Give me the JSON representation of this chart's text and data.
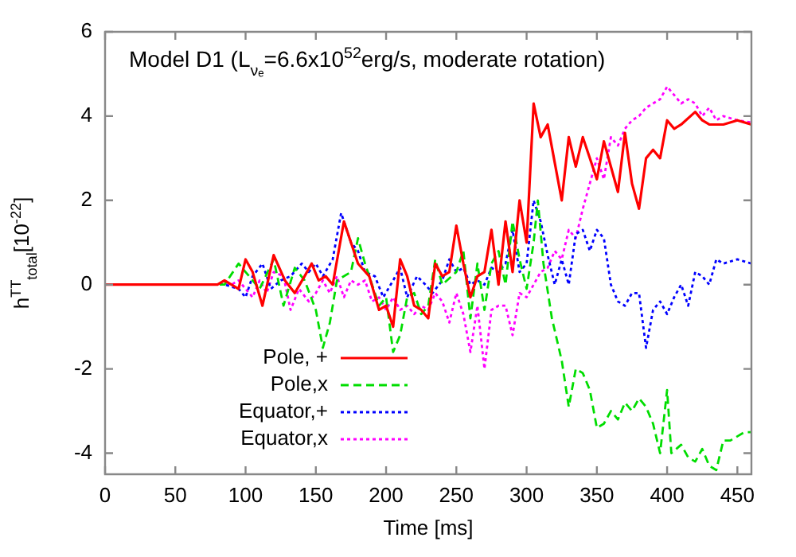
{
  "chart_data": {
    "type": "line",
    "title": "Model D1 (L$_{νₑ}$=6.6x10$^{52}$erg/s, moderate rotation)",
    "xlabel": "Time [ms]",
    "ylabel": "h$^{TT}$$_{total}$[10$^{-22}$]",
    "xlim": [
      0,
      460
    ],
    "ylim": [
      -4.5,
      6
    ],
    "xticks": [
      0,
      50,
      100,
      150,
      200,
      250,
      300,
      350,
      400,
      450
    ],
    "yticks": [
      -4,
      -2,
      0,
      2,
      4,
      6
    ],
    "grid": false,
    "legend": "bottom left",
    "marker": "none",
    "series": [
      {
        "name": "Pole, +",
        "color": "#ff0000",
        "line_style": "solid",
        "x": [
          0,
          80,
          85,
          95,
          100,
          105,
          112,
          120,
          128,
          135,
          142,
          147,
          152,
          157,
          162,
          170,
          175,
          180,
          188,
          195,
          200,
          205,
          210,
          215,
          220,
          225,
          230,
          235,
          240,
          245,
          250,
          255,
          260,
          265,
          270,
          275,
          280,
          285,
          290,
          295,
          300,
          305,
          310,
          315,
          320,
          325,
          330,
          335,
          340,
          345,
          350,
          355,
          360,
          365,
          370,
          375,
          380,
          385,
          390,
          395,
          400,
          405,
          410,
          420,
          425,
          430,
          440,
          450,
          460
        ],
        "values": [
          0,
          0,
          0.1,
          -0.1,
          0.6,
          0.3,
          -0.5,
          0.7,
          0.1,
          -0.2,
          0.2,
          0.5,
          0.1,
          0.2,
          0,
          1.5,
          1,
          0.5,
          0.2,
          -0.6,
          -0.5,
          -1,
          0.6,
          0.2,
          -0.5,
          -0.6,
          -0.8,
          0.5,
          0.2,
          0.3,
          1.4,
          0.5,
          -0.3,
          0.2,
          0.3,
          1.3,
          0,
          1.5,
          0.3,
          2,
          1,
          4.3,
          3.5,
          3.8,
          2.9,
          2,
          3.5,
          2.8,
          3.5,
          3,
          2.5,
          3.4,
          2.8,
          2.2,
          3.6,
          2.4,
          1.8,
          3,
          3.2,
          3,
          3.9,
          3.7,
          3.8,
          4.1,
          3.9,
          3.8,
          3.8,
          3.9,
          3.8
        ]
      },
      {
        "name": "Pole,x",
        "color": "#00dd00",
        "line_style": "dashed",
        "x": [
          0,
          85,
          95,
          100,
          105,
          110,
          120,
          127,
          135,
          142,
          150,
          155,
          160,
          165,
          175,
          180,
          185,
          195,
          200,
          205,
          210,
          215,
          220,
          225,
          230,
          235,
          240,
          250,
          255,
          260,
          265,
          270,
          275,
          280,
          285,
          290,
          295,
          300,
          305,
          308,
          312,
          318,
          325,
          330,
          335,
          340,
          345,
          350,
          355,
          360,
          365,
          370,
          375,
          380,
          385,
          390,
          395,
          400,
          403,
          410,
          415,
          420,
          425,
          430,
          435,
          440,
          445,
          450,
          455,
          460
        ],
        "values": [
          0,
          0,
          0.5,
          0.3,
          0.1,
          -0.1,
          0.6,
          -0.5,
          0.4,
          0.1,
          -0.6,
          -1.5,
          -0.9,
          0.1,
          0.3,
          1.1,
          0.5,
          -0.5,
          -0.3,
          -1.6,
          -1.2,
          -0.3,
          -0.2,
          -0.7,
          -0.5,
          0.6,
          0,
          0.3,
          0.8,
          -0.8,
          0.5,
          -0.6,
          0.5,
          0.8,
          0,
          1.5,
          0.6,
          -0.1,
          1,
          2,
          0.5,
          -0.8,
          -1.8,
          -2.9,
          -2,
          -2.1,
          -2.5,
          -3.4,
          -3.3,
          -3,
          -3.2,
          -2.8,
          -3,
          -2.7,
          -2.9,
          -3.3,
          -4,
          -2.5,
          -4,
          -3.8,
          -4.1,
          -4.2,
          -3.9,
          -4.3,
          -4.4,
          -3.7,
          -3.7,
          -3.6,
          -3.5,
          -3.5
        ]
      },
      {
        "name": "Equator,+",
        "color": "#0000ff",
        "line_style": "dotted",
        "x": [
          0,
          85,
          95,
          100,
          105,
          112,
          118,
          125,
          132,
          140,
          145,
          150,
          155,
          162,
          168,
          175,
          180,
          185,
          192,
          198,
          205,
          210,
          215,
          222,
          228,
          233,
          240,
          245,
          250,
          255,
          260,
          265,
          270,
          275,
          280,
          285,
          290,
          295,
          300,
          305,
          310,
          315,
          320,
          325,
          330,
          335,
          340,
          345,
          350,
          355,
          360,
          365,
          370,
          375,
          380,
          385,
          390,
          395,
          400,
          405,
          410,
          415,
          420,
          425,
          430,
          435,
          440,
          450,
          460
        ],
        "values": [
          0,
          0,
          -0.1,
          -0.3,
          0.2,
          0.5,
          -0.1,
          0.1,
          0.2,
          0.5,
          0.3,
          0.5,
          0.2,
          0.6,
          1.7,
          1,
          0.8,
          0.3,
          0.2,
          -0.3,
          0.1,
          0.4,
          -0.3,
          0.2,
          0,
          -0.2,
          0.1,
          0.6,
          0.3,
          0.4,
          0,
          0.1,
          0,
          0.4,
          0.3,
          0.5,
          1.3,
          0.3,
          0.5,
          2,
          1.5,
          0.7,
          0,
          0.6,
          0,
          1.2,
          1.3,
          0.8,
          1.3,
          1.1,
          0,
          -0.4,
          -0.5,
          -0.2,
          -0.2,
          -1.5,
          -0.6,
          -0.4,
          -0.7,
          -0.3,
          0,
          -0.5,
          0.3,
          0.2,
          0,
          0.6,
          0.5,
          0.6,
          0.5
        ]
      },
      {
        "name": "Equator,x",
        "color": "#ff00ff",
        "line_style": "dotted",
        "x": [
          0,
          90,
          95,
          100,
          105,
          110,
          115,
          120,
          127,
          132,
          138,
          145,
          150,
          155,
          160,
          165,
          170,
          175,
          180,
          185,
          190,
          195,
          200,
          205,
          210,
          215,
          220,
          225,
          230,
          235,
          240,
          245,
          250,
          255,
          260,
          265,
          270,
          275,
          280,
          285,
          290,
          295,
          300,
          305,
          310,
          315,
          320,
          325,
          330,
          335,
          340,
          345,
          350,
          355,
          360,
          365,
          370,
          375,
          380,
          385,
          390,
          395,
          400,
          405,
          410,
          415,
          420,
          425,
          430,
          435,
          440,
          450,
          460
        ],
        "values": [
          0,
          0,
          0.1,
          -0.1,
          -0.3,
          0.1,
          -0.2,
          0.3,
          0.2,
          -0.6,
          -0.1,
          -0.4,
          -0.2,
          0.1,
          -0.2,
          0.2,
          -0.3,
          0.1,
          0,
          0.1,
          -0.4,
          -0.3,
          -0.6,
          -0.3,
          -0.6,
          -0.5,
          -0.7,
          -0.5,
          -0.6,
          -0.2,
          -0.4,
          -0.9,
          -0.2,
          -0.7,
          -1.6,
          -0.5,
          -2,
          -0.6,
          -0.5,
          -0.5,
          -1.2,
          -0.2,
          -0.3,
          0,
          0.3,
          0.4,
          0.8,
          0.6,
          1.3,
          1.1,
          1.8,
          2.4,
          3,
          2.5,
          3.5,
          3.3,
          3.7,
          3.9,
          4,
          4.2,
          4.3,
          4.4,
          4.7,
          4.5,
          4.3,
          4.4,
          4.3,
          4,
          4.2,
          3.9,
          4,
          3.9,
          3.85
        ]
      }
    ]
  }
}
